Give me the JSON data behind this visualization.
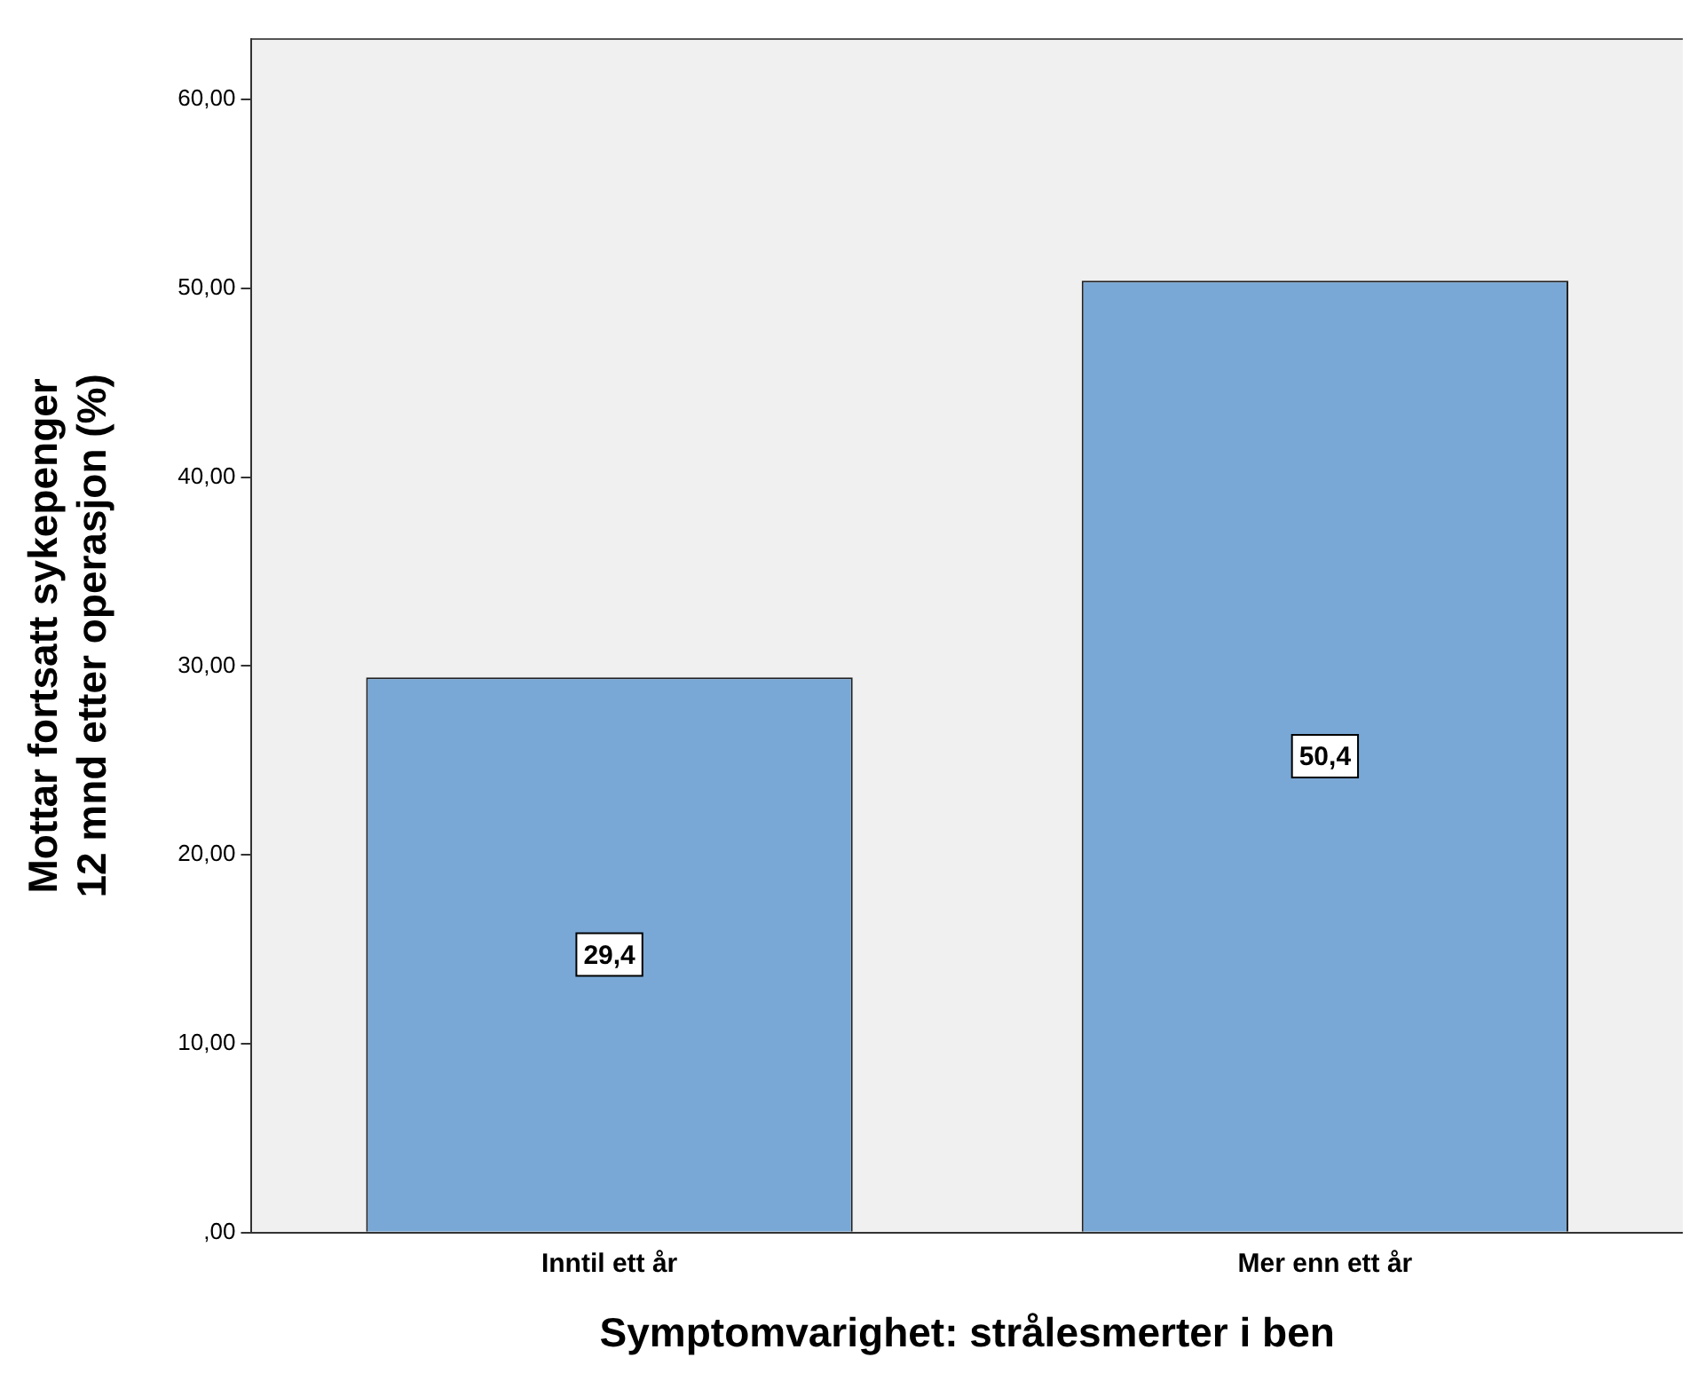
{
  "chart_data": {
    "type": "bar",
    "xlabel": "Symptomvarighet: strålesmerter i ben",
    "ylabel": "Mottar fortsatt sykepenger 12 mnd etter operasjon (%)",
    "categories": [
      "Inntil ett år",
      "Mer enn ett år"
    ],
    "values": [
      29.4,
      50.4
    ],
    "color": "#79a8d6",
    "value_labels": [
      "29,4",
      "50,4"
    ],
    "ylim": [
      0,
      63.2
    ],
    "yticks": [
      {
        "value": 0,
        "label": ",00"
      },
      {
        "value": 10,
        "label": "10,00"
      },
      {
        "value": 20,
        "label": "20,00"
      },
      {
        "value": 30,
        "label": "30,00"
      },
      {
        "value": 40,
        "label": "40,00"
      },
      {
        "value": 50,
        "label": "50,00"
      },
      {
        "value": 60,
        "label": "60,00"
      }
    ],
    "grid": false
  }
}
